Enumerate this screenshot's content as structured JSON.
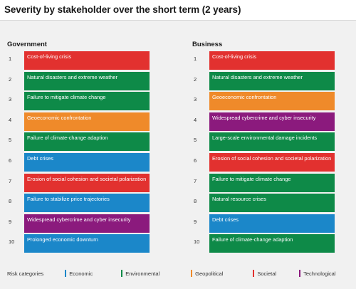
{
  "chart_data": {
    "type": "table",
    "title": "Severity by stakeholder over the short term (2 years)",
    "legend_title": "Risk categories",
    "categories": [
      {
        "name": "Economic",
        "color": "#1b87c9"
      },
      {
        "name": "Environmental",
        "color": "#0e8a48"
      },
      {
        "name": "Geopolitical",
        "color": "#ef8a2a"
      },
      {
        "name": "Societal",
        "color": "#e2312f"
      },
      {
        "name": "Technological",
        "color": "#8b1a7d"
      }
    ],
    "columns": [
      {
        "header": "Government",
        "rows": [
          {
            "rank": "1",
            "label": "Cost-of-living crisis",
            "category": "Societal"
          },
          {
            "rank": "2",
            "label": "Natural disasters and extreme weather",
            "category": "Environmental"
          },
          {
            "rank": "3",
            "label": "Failure to mitigate climate change",
            "category": "Environmental"
          },
          {
            "rank": "4",
            "label": "Geoeconomic confrontation",
            "category": "Geopolitical"
          },
          {
            "rank": "5",
            "label": "Failure of climate-change adaption",
            "category": "Environmental"
          },
          {
            "rank": "6",
            "label": "Debt crises",
            "category": "Economic"
          },
          {
            "rank": "7",
            "label": "Erosion of social cohesion and societal polarization",
            "category": "Societal"
          },
          {
            "rank": "8",
            "label": "Failure to stabilize price trajectories",
            "category": "Economic"
          },
          {
            "rank": "9",
            "label": "Widespread cybercrime and cyber insecurity",
            "category": "Technological"
          },
          {
            "rank": "10",
            "label": "Prolonged economic downturn",
            "category": "Economic"
          }
        ]
      },
      {
        "header": "Business",
        "rows": [
          {
            "rank": "1",
            "label": "Cost-of-living crisis",
            "category": "Societal"
          },
          {
            "rank": "2",
            "label": "Natural disasters and extreme weather",
            "category": "Environmental"
          },
          {
            "rank": "3",
            "label": "Geoeconomic confrontation",
            "category": "Geopolitical"
          },
          {
            "rank": "4",
            "label": "Widespread cybercrime and cyber insecurity",
            "category": "Technological"
          },
          {
            "rank": "5",
            "label": "Large-scale environmental damage incidents",
            "category": "Environmental"
          },
          {
            "rank": "6",
            "label": "Erosion of social cohesion and societal polarization",
            "category": "Societal"
          },
          {
            "rank": "7",
            "label": "Failure to mitigate climate change",
            "category": "Environmental"
          },
          {
            "rank": "8",
            "label": "Natural resource crises",
            "category": "Environmental"
          },
          {
            "rank": "9",
            "label": "Debt crises",
            "category": "Economic"
          },
          {
            "rank": "10",
            "label": "Failure of climate-change adaption",
            "category": "Environmental"
          }
        ]
      }
    ]
  }
}
